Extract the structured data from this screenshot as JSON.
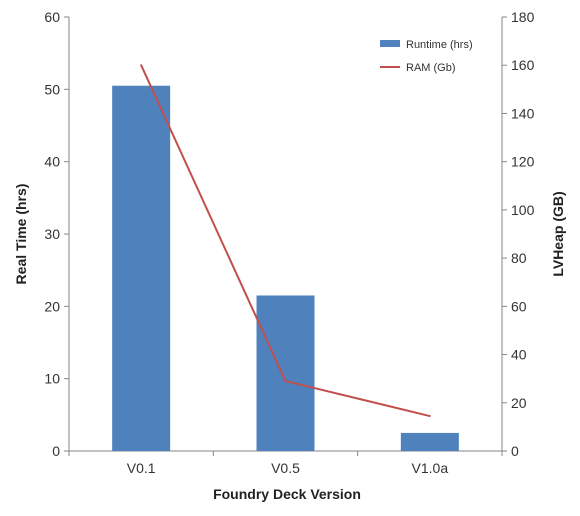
{
  "chart_data": {
    "type": "bar",
    "categories": [
      "V0.1",
      "V0.5",
      "V1.0a"
    ],
    "series": [
      {
        "name": "Runtime (hrs)",
        "type": "bar",
        "axis": "left",
        "values": [
          50.5,
          21.5,
          2.5
        ],
        "color": "#4F81BD"
      },
      {
        "name": "RAM (Gb)",
        "type": "line",
        "axis": "right",
        "values": [
          160,
          29,
          14.5
        ],
        "color": "#C0504D"
      }
    ],
    "xlabel": "Foundry Deck Version",
    "ylabel_left": "Real Time (hrs)",
    "ylabel_right": "LVHeap (GB)",
    "ylim_left": [
      0,
      60
    ],
    "yticks_left": [
      0,
      10,
      20,
      30,
      40,
      50,
      60
    ],
    "ylim_right": [
      0,
      180
    ],
    "yticks_right": [
      0,
      20,
      40,
      60,
      80,
      100,
      120,
      140,
      160,
      180
    ],
    "grid": false,
    "legend_position": "top-right"
  }
}
